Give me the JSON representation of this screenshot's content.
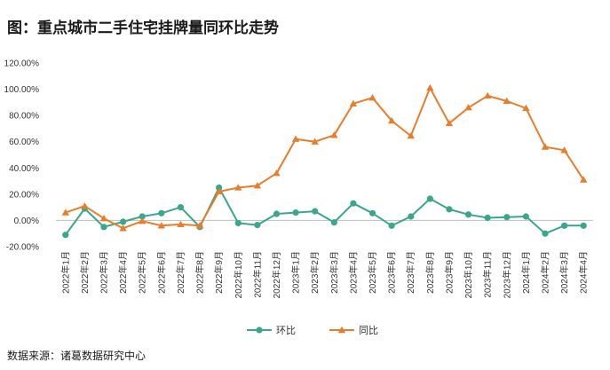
{
  "title": "图：重点城市二手住宅挂牌量同环比走势",
  "source": "数据来源：诸葛数据研究中心",
  "chart_data": {
    "type": "line",
    "categories": [
      "2022年1月",
      "2022年2月",
      "2022年3月",
      "2022年4月",
      "2022年5月",
      "2022年6月",
      "2022年7月",
      "2022年8月",
      "2022年9月",
      "2022年10月",
      "2022年11月",
      "2022年12月",
      "2023年1月",
      "2023年2月",
      "2023年3月",
      "2023年4月",
      "2023年5月",
      "2023年6月",
      "2023年7月",
      "2023年8月",
      "2023年9月",
      "2023年10月",
      "2023年11月",
      "2023年12月",
      "2024年1月",
      "2024年2月",
      "2024年3月",
      "2024年4月"
    ],
    "y_ticks": [
      "120.00%",
      "100.00%",
      "80.00%",
      "60.00%",
      "40.00%",
      "20.00%",
      "0.00%",
      "-20.00%"
    ],
    "ylim": [
      -20,
      120
    ],
    "series": [
      {
        "name": "环比",
        "color": "#3aa78d",
        "marker": "circle",
        "values": [
          -11,
          9,
          -5,
          -1,
          3,
          5.5,
          10,
          -5,
          25,
          -2,
          -3.5,
          5,
          6,
          7,
          -1.5,
          13,
          5.5,
          -4,
          3,
          16.5,
          8.5,
          4.5,
          2,
          2.5,
          3,
          -10,
          -4,
          -4
        ]
      },
      {
        "name": "同比",
        "color": "#e87d2b",
        "marker": "triangle",
        "values": [
          6,
          11,
          1.5,
          -6,
          -0.5,
          -4,
          -3,
          -4,
          22,
          25,
          26.5,
          36,
          62,
          60,
          65,
          89,
          93.5,
          76,
          64.5,
          101,
          74,
          86,
          95,
          91,
          85.5,
          56,
          53.5,
          31
        ]
      }
    ]
  }
}
